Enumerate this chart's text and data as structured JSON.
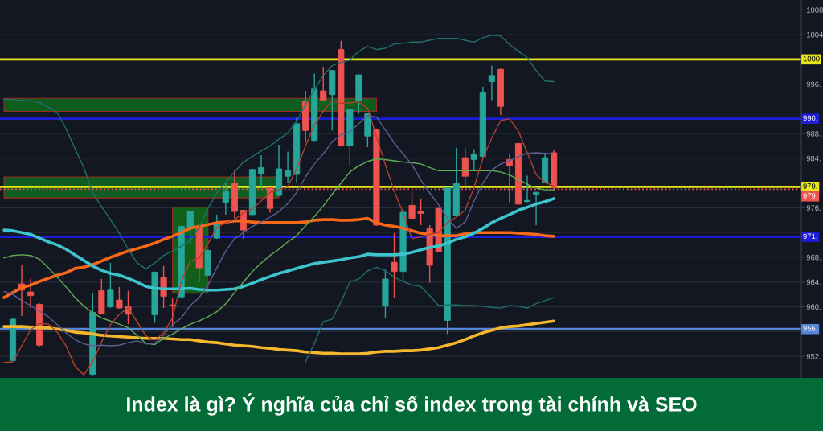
{
  "chart_data": {
    "type": "candlestick",
    "title": "Index là gì? Ý nghĩa của chỉ số index trong tài chính và SEO",
    "categories": [
      null,
      null,
      null,
      null,
      null,
      null,
      null,
      null,
      null,
      null,
      null,
      null,
      null,
      null,
      null,
      null,
      null,
      null,
      null,
      null,
      null,
      null,
      null,
      null,
      null,
      null,
      null,
      null,
      null,
      null,
      null,
      null,
      null,
      null,
      null,
      null,
      null,
      null,
      null,
      null,
      null,
      null,
      null,
      null,
      null,
      null,
      null,
      null,
      null,
      null,
      null,
      null,
      null,
      null,
      null,
      null,
      null,
      null,
      null,
      null,
      null,
      null,
      null
    ],
    "ohlc": [
      null,
      [
        951.3,
        958.1,
        951.2,
        958.0
      ],
      [
        963.7,
        966.8,
        958.5,
        962.7
      ],
      [
        962.4,
        964.6,
        959.8,
        961.8
      ],
      [
        960.4,
        960.6,
        953.6,
        953.8
      ],
      null,
      null,
      null,
      null,
      null,
      [
        949.1,
        962.2,
        948.9,
        959.1
      ],
      [
        962.6,
        964.5,
        958.8,
        958.9
      ],
      [
        960.0,
        967.1,
        959.8,
        962.7
      ],
      [
        961.1,
        963.2,
        959.7,
        959.8
      ],
      [
        960.0,
        962.6,
        957.2,
        958.8
      ],
      null,
      null,
      [
        958.7,
        965.7,
        957.4,
        965.6
      ],
      [
        964.8,
        966.6,
        959.8,
        961.7
      ],
      [
        960.3,
        961.5,
        956.7,
        960.2
      ],
      [
        961.6,
        973.1,
        961.5,
        973.0
      ],
      [
        972.6,
        975.5,
        970.2,
        975.4
      ],
      [
        972.8,
        973.0,
        963.9,
        966.3
      ],
      [
        965.1,
        969.2,
        965.0,
        969.1
      ],
      [
        971.1,
        974.9,
        971.0,
        973.6
      ],
      [
        976.9,
        980.1,
        974.9,
        978.6
      ],
      [
        980.0,
        982.1,
        974.3,
        975.4
      ],
      [
        975.6,
        975.7,
        971.0,
        972.4
      ],
      [
        974.9,
        982.3,
        974.8,
        982.2
      ],
      [
        981.5,
        984.5,
        979.3,
        982.5
      ],
      [
        979.3,
        979.4,
        975.2,
        975.9
      ],
      [
        978.0,
        986.2,
        977.9,
        982.3
      ],
      [
        981.1,
        985.1,
        980.1,
        982.1
      ],
      [
        981.4,
        990.6,
        980.1,
        989.6
      ],
      [
        993.2,
        994.9,
        986.7,
        988.5
      ],
      [
        986.9,
        997.7,
        986.8,
        995.2
      ],
      [
        994.9,
        998.8,
        993.3,
        993.4
      ],
      [
        994.3,
        998.3,
        988.5,
        998.2
      ],
      [
        1001.6,
        1003.0,
        985.9,
        986.0
      ],
      [
        986.0,
        992.0,
        982.7,
        991.9
      ],
      [
        993.3,
        997.6,
        991.2,
        997.5
      ],
      [
        987.6,
        991.3,
        985.8,
        991.2
      ],
      [
        988.6,
        988.7,
        973.1,
        973.2
      ],
      [
        960.1,
        966.1,
        958.2,
        964.5
      ],
      [
        967.2,
        971.9,
        961.5,
        965.7
      ],
      [
        965.7,
        975.8,
        964.1,
        975.3
      ],
      [
        976.4,
        978.6,
        974.2,
        974.3
      ],
      [
        975.4,
        977.5,
        973.2,
        975.1
      ],
      [
        972.6,
        973.2,
        963.9,
        966.7
      ],
      [
        975.9,
        976.0,
        968.8,
        968.9
      ],
      [
        957.8,
        979.4,
        955.6,
        979.3
      ],
      [
        974.7,
        985.7,
        974.6,
        979.9
      ],
      [
        984.1,
        985.6,
        979.5,
        981.1
      ],
      [
        983.8,
        985.5,
        981.9,
        984.7
      ],
      [
        984.3,
        995.6,
        984.2,
        994.6
      ],
      [
        996.4,
        999.0,
        993.4,
        997.4
      ],
      [
        998.4,
        998.5,
        991.0,
        992.4
      ],
      [
        983.8,
        984.7,
        976.9,
        982.8
      ],
      [
        986.4,
        986.5,
        976.5,
        976.6
      ],
      [
        977.0,
        981.2,
        976.9,
        977.2
      ],
      [
        978.1,
        978.6,
        973.2,
        978.5
      ],
      [
        980.1,
        984.7,
        980.0,
        984.1
      ],
      [
        984.9,
        985.4,
        978.8,
        979.3
      ]
    ],
    "colors": [
      null,
      "#26a69a",
      "#ef5350",
      "#ef5350",
      "#ef5350",
      null,
      null,
      null,
      null,
      null,
      "#26a69a",
      "#ef5350",
      "#26a69a",
      "#ef5350",
      "#ef5350",
      null,
      null,
      "#26a69a",
      "#ef5350",
      "#ef5350",
      "#26a69a",
      "#26a69a",
      "#ef5350",
      "#26a69a",
      "#26a69a",
      "#26a69a",
      "#ef5350",
      "#ef5350",
      "#26a69a",
      "#26a69a",
      "#ef5350",
      "#26a69a",
      "#26a69a",
      "#26a69a",
      "#ef5350",
      "#26a69a",
      "#ef5350",
      "#26a69a",
      "#ef5350",
      "#26a69a",
      "#26a69a",
      "#26a69a",
      "#ef5350",
      "#26a69a",
      "#ef5350",
      "#26a69a",
      "#ef5350",
      "#ef5350",
      "#ef5350",
      "#ef5350",
      "#26a69a",
      "#26a69a",
      "#ef5350",
      "#26a69a",
      "#26a69a",
      "#26a69a",
      "#ef5350",
      "#ef5350",
      "#ef5350",
      "#26a69a",
      "#26a69a",
      "#26a69a",
      "#ef5350"
    ],
    "series": [
      {
        "type": "line",
        "color": "#f7681a",
        "values": [
          961.5,
          962.3,
          963.1,
          963.5,
          964.1,
          964.6,
          965.1,
          965.5,
          966.2,
          966.4,
          966.8,
          967.4,
          968.0,
          968.5,
          969.0,
          969.4,
          969.8,
          970.3,
          970.9,
          971.4,
          972.0,
          972.7,
          973.0,
          973.3,
          973.6,
          973.7,
          973.9,
          973.9,
          973.7,
          973.6,
          973.6,
          973.6,
          973.6,
          973.6,
          973.7,
          974.0,
          974.1,
          974.1,
          974.0,
          974.0,
          974.1,
          974.3,
          973.6,
          973.2,
          973.0,
          972.7,
          972.3,
          971.9,
          971.7,
          971.5,
          971.5,
          971.5,
          971.8,
          972.0,
          972.0,
          972.0,
          972.0,
          972.0,
          971.9,
          971.8,
          971.7,
          971.5,
          971.4
        ]
      },
      {
        "type": "line",
        "color": "#3cc4cf",
        "values": [
          972.4,
          972.3,
          972.0,
          971.7,
          971.1,
          970.5,
          970.0,
          969.3,
          968.4,
          967.5,
          966.6,
          965.9,
          965.4,
          965.1,
          964.6,
          964.0,
          963.3,
          963.0,
          962.9,
          962.9,
          962.9,
          963.0,
          962.8,
          962.7,
          962.7,
          962.8,
          962.9,
          963.3,
          963.8,
          964.4,
          964.9,
          965.4,
          965.8,
          966.2,
          966.6,
          967.0,
          967.2,
          967.4,
          967.6,
          967.9,
          968.1,
          968.5,
          968.4,
          968.4,
          968.4,
          968.5,
          968.8,
          969.2,
          969.6,
          969.8,
          970.3,
          970.9,
          971.3,
          971.9,
          972.7,
          973.6,
          974.3,
          974.9,
          975.6,
          976.1,
          976.6,
          977.0,
          977.5
        ]
      },
      {
        "type": "line",
        "color": "#f5b82c",
        "values": [
          956.8,
          956.8,
          956.8,
          956.7,
          956.6,
          956.6,
          956.4,
          956.2,
          955.9,
          955.8,
          955.6,
          955.4,
          955.3,
          955.2,
          955.1,
          955.0,
          954.9,
          954.9,
          954.9,
          954.8,
          954.7,
          954.7,
          954.5,
          954.3,
          954.2,
          954.0,
          953.8,
          953.7,
          953.6,
          953.4,
          953.3,
          953.1,
          953.0,
          952.9,
          952.7,
          952.6,
          952.5,
          952.5,
          952.4,
          952.4,
          952.4,
          952.5,
          952.7,
          952.8,
          952.8,
          952.9,
          952.9,
          953.0,
          953.2,
          953.4,
          953.8,
          954.2,
          954.7,
          955.3,
          955.8,
          956.2,
          956.6,
          956.8,
          956.9,
          957.1,
          957.3,
          957.5,
          957.7
        ]
      },
      {
        "type": "line",
        "color": "#5fae55",
        "values": [
          967.9,
          968.3,
          968.4,
          968.3,
          967.7,
          966.3,
          964.8,
          963.2,
          961.5,
          960.1,
          959.0,
          958.2,
          957.7,
          957.2,
          956.6,
          955.4,
          954.1,
          953.9,
          954.9,
          955.6,
          956.4,
          957.2,
          957.7,
          958.4,
          959.2,
          960.5,
          962.3,
          964.0,
          965.7,
          967.1,
          968.3,
          969.3,
          970.5,
          971.5,
          973.1,
          974.6,
          976.3,
          978.2,
          980.0,
          981.8,
          982.8,
          983.5,
          983.9,
          983.8,
          983.6,
          983.4,
          983.3,
          983.1,
          982.5,
          982.0,
          982.0,
          982.0,
          982.0,
          982.0,
          982.0,
          982.0,
          981.8,
          981.3,
          980.6,
          979.8,
          979.2,
          978.9,
          978.9
        ]
      },
      {
        "type": "line",
        "color": "#21706a",
        "values": [
          993.6,
          993.5,
          993.4,
          993.3,
          993.0,
          992.3,
          991.4,
          988.8,
          985.6,
          982.5,
          978.4,
          976.2,
          974.1,
          971.9,
          969.3,
          967.1,
          966.1,
          967.1,
          968.3,
          969.0,
          969.8,
          970.7,
          972.8,
          975.9,
          978.4,
          980.1,
          981.8,
          983.4,
          984.3,
          985.2,
          986.0,
          987.1,
          988.1,
          990.0,
          992.7,
          995.1,
          997.4,
          999.0,
          999.5,
          999.9,
          1001.3,
          1002.1,
          1001.6,
          1001.8,
          1002.5,
          1002.6,
          1002.8,
          1002.8,
          1003.1,
          1003.4,
          1003.4,
          1003.4,
          1003.1,
          1002.8,
          1003.5,
          1003.9,
          1003.8,
          1002.4,
          1001.3,
          1000.3,
          998.2,
          996.5,
          996.4
        ]
      },
      {
        "type": "line",
        "color": "#21706a",
        "values": [
          null,
          null,
          null,
          null,
          null,
          null,
          null,
          null,
          null,
          null,
          null,
          null,
          null,
          null,
          null,
          null,
          null,
          null,
          null,
          null,
          null,
          null,
          null,
          null,
          null,
          null,
          null,
          null,
          null,
          null,
          null,
          null,
          null,
          null,
          951.1,
          954.1,
          957.6,
          958.0,
          960.8,
          964.0,
          964.5,
          965.8,
          966.4,
          965.8,
          964.8,
          964.1,
          963.5,
          963.3,
          961.8,
          960.2,
          960.3,
          960.3,
          960.2,
          960.2,
          960.1,
          959.9,
          959.8,
          960.2,
          960.1,
          959.8,
          960.5,
          961.0,
          961.5
        ]
      },
      {
        "type": "line",
        "color": "#b5402f",
        "values": [
          951.0,
          951.1,
          953.7,
          956.3,
          957.3,
          957.2,
          955.9,
          953.7,
          950.4,
          949.0,
          951.1,
          954.3,
          957.1,
          958.8,
          959.8,
          957.6,
          955.3,
          954.6,
          955.8,
          958.2,
          964.1,
          967.4,
          967.9,
          970.2,
          972.8,
          973.6,
          974.1,
          975.2,
          975.8,
          977.1,
          978.5,
          978.9,
          979.5,
          982.3,
          986.0,
          989.4,
          991.6,
          993.4,
          992.9,
          993.0,
          993.1,
          992.1,
          987.5,
          983.0,
          978.7,
          975.2,
          971.0,
          971.3,
          971.7,
          972.0,
          973.6,
          974.5,
          975.6,
          979.3,
          984.0,
          987.3,
          990.1,
          990.4,
          988.4,
          984.9,
          981.4,
          980.1,
          979.5
        ]
      },
      {
        "type": "line",
        "color": "#5f5e92",
        "values": [
          962.5,
          962.0,
          961.0,
          960.2,
          959.3,
          958.4,
          957.1,
          955.8,
          954.7,
          954.0,
          953.7,
          953.8,
          953.7,
          953.8,
          954.2,
          954.5,
          954.0,
          954.1,
          955.4,
          957.1,
          958.2,
          960.2,
          961.5,
          963.5,
          966.3,
          969.0,
          971.0,
          972.0,
          973.0,
          973.7,
          974.5,
          975.4,
          976.7,
          978.5,
          981.0,
          983.1,
          984.7,
          986.7,
          987.8,
          988.3,
          989.6,
          990.9,
          990.7,
          988.6,
          986.5,
          984.7,
          983.0,
          980.5,
          978.4,
          976.5,
          974.3,
          972.7,
          973.7,
          977.1,
          980.0,
          982.1,
          983.1,
          983.6,
          984.3,
          984.8,
          984.9,
          984.8,
          984.7
        ]
      },
      {
        "type": "line",
        "color": "#0e5c1e",
        "values": [
          null,
          null,
          null,
          null,
          null,
          null,
          null,
          null,
          null,
          null,
          null,
          null,
          null,
          null,
          null,
          null,
          null,
          null,
          null,
          null,
          null,
          null,
          null,
          null,
          null,
          null,
          null,
          null,
          null,
          null,
          null,
          null,
          null,
          null,
          null,
          null,
          null,
          null,
          null,
          null,
          null,
          null,
          null,
          null,
          null,
          null,
          null,
          null,
          null,
          null,
          null,
          null,
          null,
          null,
          null,
          null,
          null,
          null,
          null,
          null,
          null,
          null,
          null
        ],
        "lower": [
          991.6,
          991.6,
          991.6,
          991.6,
          991.6,
          991.6,
          991.6,
          991.6,
          991.6,
          991.6,
          991.6,
          991.6,
          991.6,
          991.6,
          991.6,
          991.6,
          991.6,
          991.6,
          991.6,
          991.6,
          991.6,
          991.6,
          991.6,
          991.6,
          991.6,
          991.6,
          991.6,
          991.6,
          991.6,
          991.6,
          991.6,
          991.6,
          991.6,
          991.6,
          991.6,
          991.6,
          991.6,
          991.6,
          991.6,
          991.6,
          991.6,
          991.6,
          991.6,
          null,
          null,
          null,
          null,
          null,
          null,
          null,
          null,
          null,
          null,
          null,
          null,
          null,
          null,
          null,
          null,
          null,
          null,
          null,
          null
        ],
        "upper": [
          993.7,
          993.7,
          993.7,
          993.7,
          993.7,
          993.7,
          993.7,
          993.7,
          993.7,
          993.7,
          993.7,
          993.7,
          993.7,
          993.7,
          993.7,
          993.7,
          993.7,
          993.7,
          993.7,
          993.7,
          993.7,
          993.7,
          993.7,
          993.7,
          993.7,
          993.7,
          993.7,
          993.7,
          993.7,
          993.7,
          993.7,
          993.7,
          993.7,
          993.7,
          993.7,
          993.7,
          993.7,
          993.7,
          993.7,
          993.7,
          993.7,
          993.7,
          993.7,
          null,
          null,
          null,
          null,
          null,
          null,
          null,
          null,
          null,
          null,
          null,
          null,
          null,
          null,
          null,
          null,
          null,
          null,
          null,
          null
        ]
      },
      {
        "type": "line",
        "color": "#0f5d20",
        "values": [
          null,
          null,
          null,
          null,
          null,
          null,
          null,
          null,
          null,
          null,
          null,
          null,
          null,
          null,
          null,
          null,
          null,
          null,
          null,
          null,
          null,
          null,
          null,
          null,
          null,
          null,
          null,
          null,
          null,
          null,
          null,
          null,
          null,
          null,
          null,
          null,
          null,
          null,
          null,
          null,
          null,
          null,
          null,
          null,
          null,
          null,
          null,
          null,
          null,
          null,
          null,
          null,
          null,
          null,
          null,
          null,
          null,
          null,
          null,
          null,
          null,
          null,
          null
        ],
        "lower": [
          977.6,
          977.6,
          977.6,
          977.6,
          977.6,
          977.6,
          977.6,
          977.6,
          977.6,
          977.6,
          977.6,
          977.6,
          977.6,
          977.6,
          977.6,
          977.6,
          977.6,
          977.6,
          977.6,
          977.6,
          977.6,
          977.6,
          977.6,
          977.6,
          977.6,
          977.6,
          977.6,
          977.6,
          977.6,
          977.6,
          977.6,
          977.6,
          null,
          null,
          null,
          null,
          null,
          null,
          null,
          null,
          null,
          null,
          null,
          null,
          null,
          null,
          null,
          null,
          null,
          null,
          null,
          null,
          null,
          null,
          null,
          null,
          null,
          null,
          null,
          null,
          null,
          null,
          null
        ],
        "upper": [
          981.0,
          981.0,
          981.0,
          981.0,
          981.0,
          981.0,
          981.0,
          981.0,
          981.0,
          981.0,
          981.0,
          981.0,
          981.0,
          981.0,
          981.0,
          981.0,
          981.0,
          981.0,
          981.0,
          981.0,
          981.0,
          981.0,
          981.0,
          981.0,
          981.0,
          981.0,
          981.0,
          981.0,
          981.0,
          981.0,
          981.0,
          981.0,
          null,
          null,
          null,
          null,
          null,
          null,
          null,
          null,
          null,
          null,
          null,
          null,
          null,
          null,
          null,
          null,
          null,
          null,
          null,
          null,
          null,
          null,
          null,
          null,
          null,
          null,
          null,
          null,
          null,
          null,
          null
        ]
      },
      {
        "type": "line",
        "color": "#125f1a",
        "values": [
          null,
          null,
          null,
          null,
          null,
          null,
          null,
          null,
          null,
          null,
          null,
          null,
          null,
          null,
          null,
          null,
          null,
          null,
          null,
          null,
          null,
          null,
          null,
          null,
          null,
          null,
          null,
          null,
          null,
          null,
          null,
          null,
          null,
          null,
          null,
          null,
          null,
          null,
          null,
          null,
          null,
          null,
          null,
          null,
          null,
          null,
          null,
          null,
          null,
          null,
          null,
          null,
          null,
          null,
          null,
          null,
          null,
          null,
          null,
          null,
          null,
          null,
          null
        ],
        "lower": [
          null,
          null,
          null,
          null,
          null,
          null,
          null,
          null,
          null,
          null,
          null,
          null,
          null,
          null,
          null,
          null,
          null,
          null,
          null,
          962.2,
          962.2,
          962.2,
          962.2,
          962.2,
          null,
          null,
          null,
          null,
          null,
          null,
          null,
          null,
          null,
          null,
          null,
          null,
          null,
          null,
          null,
          null,
          null,
          null,
          null,
          null,
          null,
          null,
          null,
          null,
          null,
          null,
          null,
          null,
          null,
          null,
          null,
          null,
          null,
          null,
          null,
          null,
          null,
          null,
          null
        ],
        "upper": [
          null,
          null,
          null,
          null,
          null,
          null,
          null,
          null,
          null,
          null,
          null,
          null,
          null,
          null,
          null,
          null,
          null,
          null,
          null,
          976.1,
          976.1,
          976.1,
          976.1,
          976.1,
          null,
          null,
          null,
          null,
          null,
          null,
          null,
          null,
          null,
          null,
          null,
          null,
          null,
          null,
          null,
          null,
          null,
          null,
          null,
          null,
          null,
          null,
          null,
          null,
          null,
          null,
          null,
          null,
          null,
          null,
          null,
          null,
          null,
          null,
          null,
          null,
          null,
          null,
          null
        ]
      }
    ],
    "ylim": [
      948.5,
      1009.6
    ],
    "yticks": [
      {
        "value": 952,
        "label": "952."
      },
      {
        "value": 956,
        "label": null
      },
      {
        "value": 960,
        "label": "960."
      },
      {
        "value": 964,
        "label": "964."
      },
      {
        "value": 968,
        "label": "968."
      },
      {
        "value": 972,
        "label": null
      },
      {
        "value": 976,
        "label": "976."
      },
      {
        "value": 984,
        "label": "984."
      },
      {
        "value": 988,
        "label": "988."
      },
      {
        "value": 992,
        "label": null
      },
      {
        "value": 996,
        "label": "996."
      },
      1004,
      1008
    ],
    "tick_labels": "y",
    "grid": "y",
    "ref_lines": [
      {
        "axis": "y",
        "value": 1000,
        "label": "1000",
        "color": "#e6e619"
      },
      {
        "axis": "y",
        "value": 990.4,
        "label": "990.",
        "color": "#1c1cd9"
      },
      {
        "axis": "y",
        "value": 979.4,
        "label": "979.",
        "color": "#e6e619"
      },
      {
        "axis": "y",
        "value": 979.0,
        "label": "979.",
        "color": "#ef5350",
        "line_style": "dotted"
      },
      {
        "axis": "y",
        "value": 971.3,
        "label": "971.",
        "color": "#1c1cd9"
      },
      {
        "axis": "y",
        "value": 956.4,
        "label": "956.",
        "color": "#5585d6"
      }
    ]
  }
}
